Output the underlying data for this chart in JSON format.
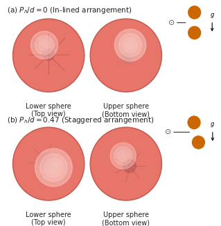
{
  "title_a": "(a) $P_h/d = 0$ (In-lined arrangement)",
  "title_b": "(b) $P_h/d = 0.47$ (Staggered arrangement)",
  "label_lower": "Lower sphere\n(Top view)",
  "label_upper": "Upper sphere\n(Bottom view)",
  "sphere_color_base": "#e8756a",
  "sphere_color_light": "#f4a898",
  "sphere_color_dark": "#c45a50",
  "sphere_color_highlight": "#f8cfc8",
  "dot_color_orange": "#cc6600",
  "text_color": "#222222",
  "font_size_title": 7.5,
  "font_size_label": 7,
  "figure_bg": "#ffffff"
}
